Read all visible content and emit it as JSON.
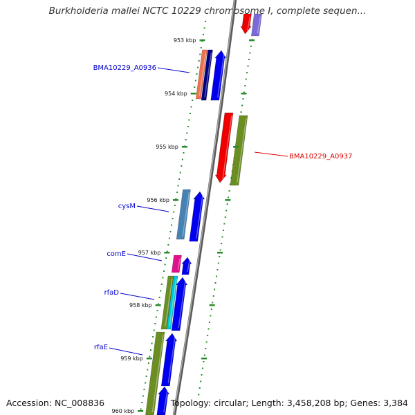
{
  "title": "Burkholderia mallei NCTC 10229 chromosome I, complete sequen...",
  "footer": {
    "accession": "Accession: NC_008836",
    "topology": "Topology: circular; Length: 3,458,208 bp; Genes: 3,384"
  },
  "ticks": [
    {
      "label": "953 kbp"
    },
    {
      "label": "954 kbp"
    },
    {
      "label": "955 kbp"
    },
    {
      "label": "956 kbp"
    },
    {
      "label": "957 kbp"
    },
    {
      "label": "958 kbp"
    },
    {
      "label": "959 kbp"
    },
    {
      "label": "960 kbp"
    }
  ],
  "gene_labels": [
    {
      "text": "BMA10229_A0936",
      "color": "#0000cc"
    },
    {
      "text": "BMA10229_A0937",
      "color": "#dd0000"
    },
    {
      "text": "cysM",
      "color": "#0000cc"
    },
    {
      "text": "comE",
      "color": "#0000cc"
    },
    {
      "text": "rfaD",
      "color": "#0000cc"
    },
    {
      "text": "rfaE",
      "color": "#0000cc"
    }
  ],
  "colors": {
    "backbone": "#8c8c8c",
    "tick_dots": "#2a8a2a",
    "cds_blue": "#0000ee",
    "cds_red": "#ee0000",
    "cds_olive": "#6b8e23",
    "cds_salmon": "#f07050",
    "cds_navy": "#000080",
    "cds_steel": "#4682b4",
    "cds_magenta": "#e0108a",
    "cds_cyan": "#00c8d8",
    "cds_purple": "#7a6ad8"
  }
}
